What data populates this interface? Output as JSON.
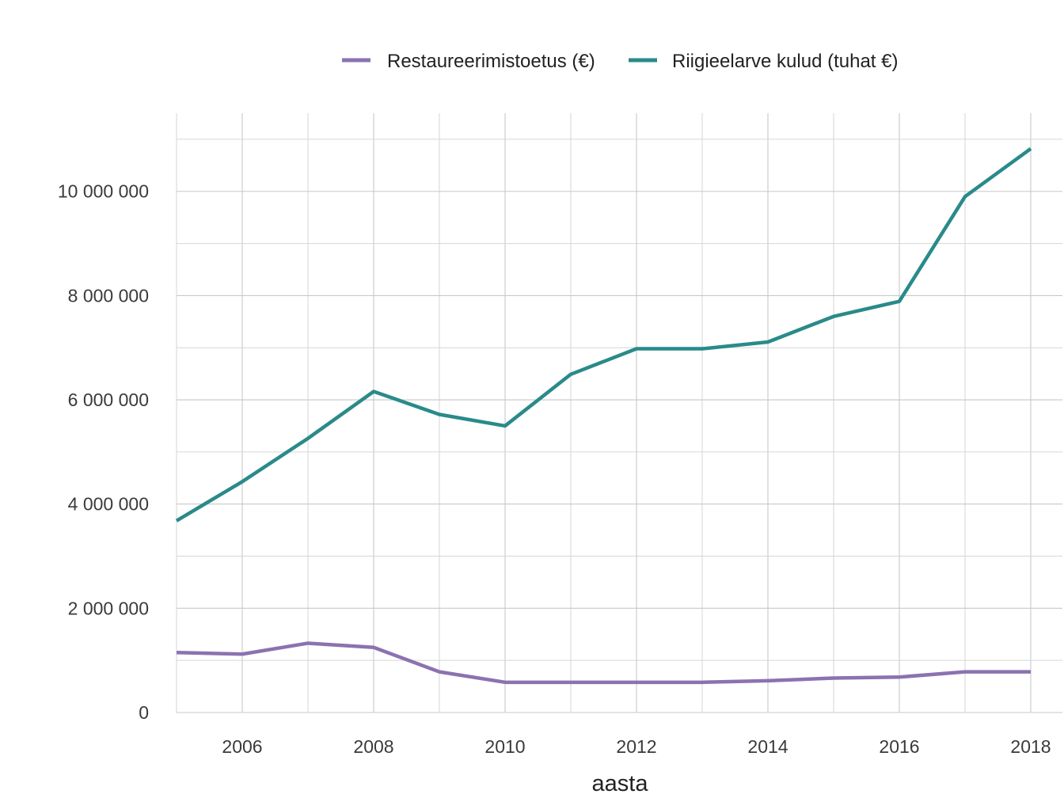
{
  "chart_data": {
    "type": "line",
    "title": "",
    "xlabel": "aasta",
    "ylabel": "",
    "x": [
      2005,
      2006,
      2007,
      2008,
      2009,
      2010,
      2011,
      2012,
      2013,
      2014,
      2015,
      2016,
      2017,
      2018
    ],
    "xlim": [
      2005,
      2018
    ],
    "ylim": [
      0,
      11500000
    ],
    "x_ticks": [
      2006,
      2008,
      2010,
      2012,
      2014,
      2016,
      2018
    ],
    "x_tick_labels": [
      "2006",
      "2008",
      "2010",
      "2012",
      "2014",
      "2016",
      "2018"
    ],
    "y_ticks": [
      0,
      2000000,
      4000000,
      6000000,
      8000000,
      10000000
    ],
    "y_tick_labels": [
      "0",
      "2 000 000",
      "4 000 000",
      "6 000 000",
      "8 000 000",
      "10 000 000"
    ],
    "grid": true,
    "legend_position": "top",
    "series": [
      {
        "name": "Restaureerimistoetus (€)",
        "color": "#8c72b0",
        "values": [
          1150000,
          1120000,
          1330000,
          1250000,
          780000,
          580000,
          580000,
          580000,
          580000,
          610000,
          660000,
          680000,
          780000,
          780000
        ]
      },
      {
        "name": "Riigieelarve kulud (tuhat €)",
        "color": "#2a8a8a",
        "values": [
          3680000,
          4430000,
          5260000,
          6160000,
          5720000,
          5500000,
          6490000,
          6980000,
          6980000,
          7110000,
          7600000,
          7890000,
          9900000,
          10820000
        ]
      }
    ]
  }
}
